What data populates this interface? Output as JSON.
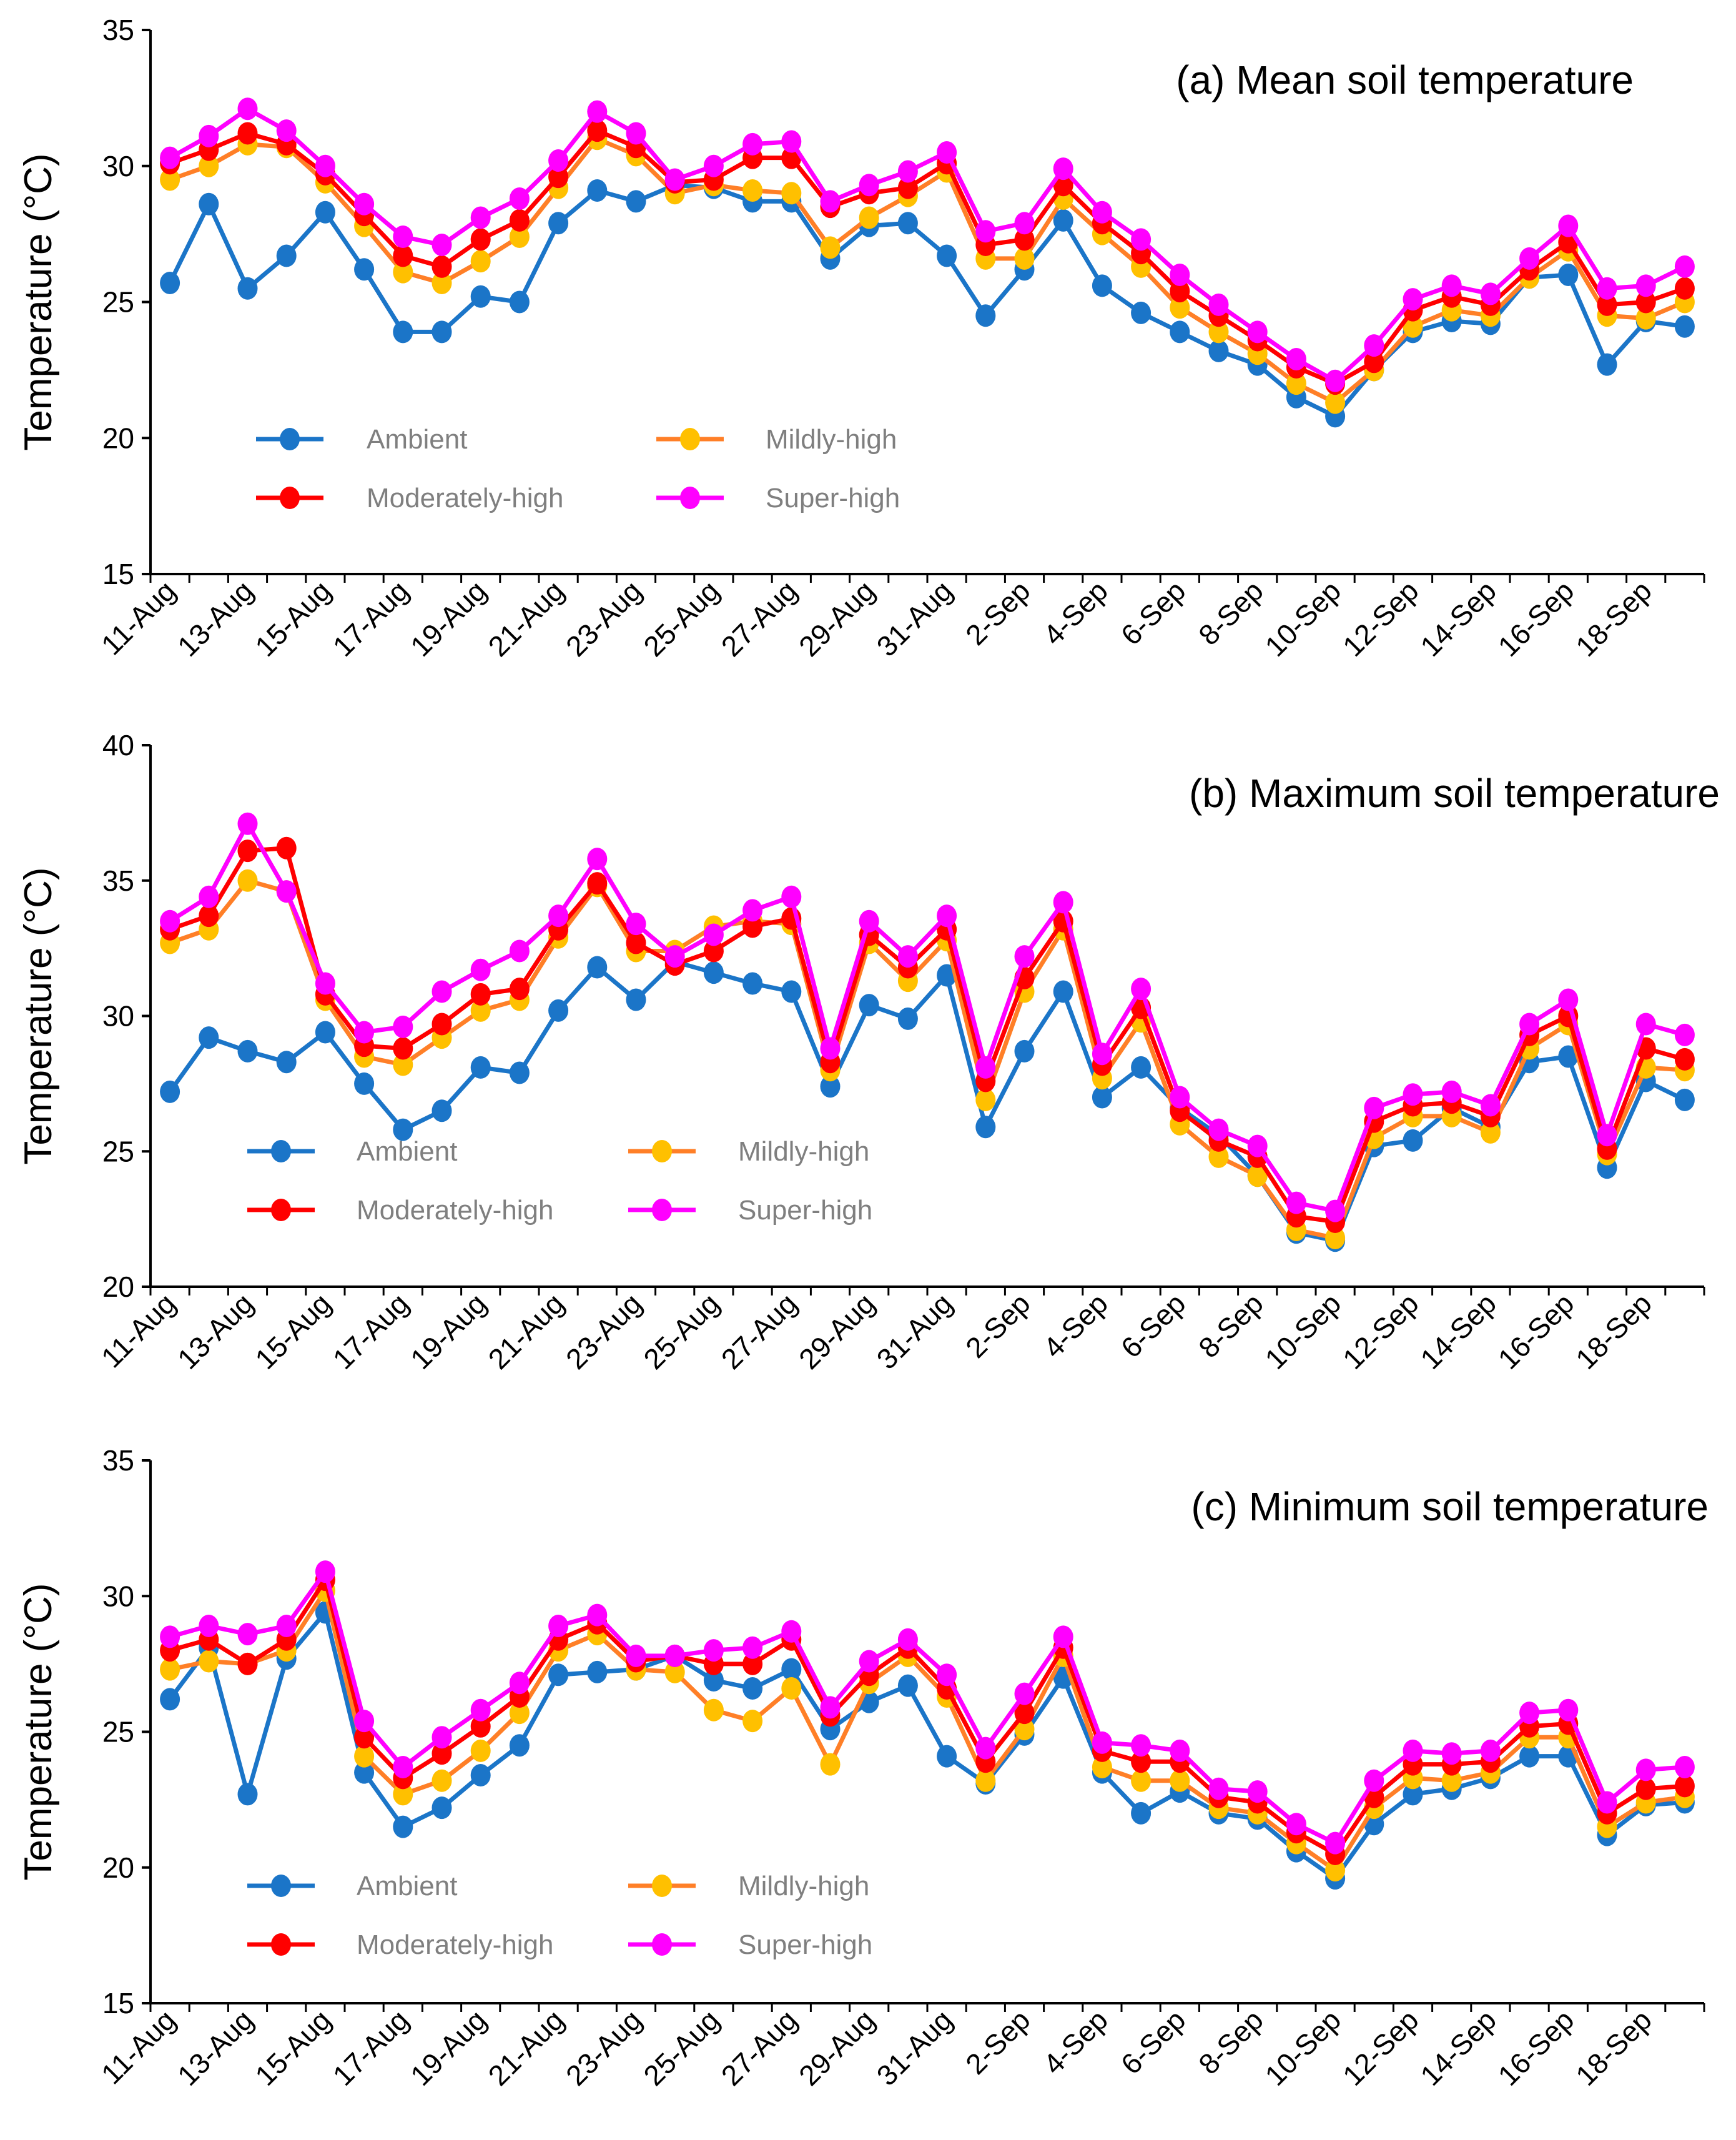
{
  "chart_data": [
    {
      "type": "line",
      "title": "(a) Mean soil temperature",
      "ylabel": "Temperature (°C)",
      "xlabel": "",
      "ylim": [
        15,
        35
      ],
      "yticks": [
        "15",
        "20",
        "25",
        "30",
        "35"
      ],
      "grid": false,
      "legend_position": "lower-left",
      "series": [
        {
          "name": "Ambient",
          "values": [
            25.7,
            28.6,
            25.5,
            26.7,
            28.3,
            26.2,
            23.9,
            23.9,
            25.2,
            25.0,
            27.9,
            29.1,
            28.7,
            29.3,
            29.2,
            28.7,
            28.7,
            26.6,
            27.8,
            27.9,
            26.7,
            24.5,
            26.2,
            28.0,
            25.6,
            24.6,
            23.9,
            23.2,
            22.7,
            21.5,
            20.8,
            22.5,
            23.9,
            24.3,
            24.2,
            25.9,
            26.0,
            22.7,
            24.3,
            24.1
          ]
        },
        {
          "name": "Mildly-high",
          "values": [
            29.5,
            30.0,
            30.8,
            30.7,
            29.4,
            27.8,
            26.1,
            25.7,
            26.5,
            27.4,
            29.2,
            31.0,
            30.4,
            29.0,
            29.3,
            29.1,
            29.0,
            27.0,
            28.1,
            28.9,
            29.8,
            26.6,
            26.6,
            28.8,
            27.5,
            26.3,
            24.8,
            23.9,
            23.1,
            22.0,
            21.3,
            22.5,
            24.1,
            24.7,
            24.5,
            25.9,
            26.9,
            24.5,
            24.4,
            25.0
          ]
        },
        {
          "name": "Moderately-high",
          "values": [
            30.1,
            30.6,
            31.2,
            30.8,
            29.7,
            28.2,
            26.7,
            26.3,
            27.3,
            28.0,
            29.6,
            31.3,
            30.7,
            29.4,
            29.5,
            30.3,
            30.3,
            28.5,
            29.0,
            29.2,
            30.1,
            27.1,
            27.3,
            29.3,
            27.9,
            26.8,
            25.4,
            24.5,
            23.6,
            22.6,
            22.0,
            22.8,
            24.7,
            25.2,
            24.9,
            26.2,
            27.2,
            24.9,
            25.0,
            25.5
          ]
        },
        {
          "name": "Super-high",
          "values": [
            30.3,
            31.1,
            32.1,
            31.3,
            30.0,
            28.6,
            27.4,
            27.1,
            28.1,
            28.8,
            30.2,
            32.0,
            31.2,
            29.5,
            30.0,
            30.8,
            30.9,
            28.7,
            29.3,
            29.8,
            30.5,
            27.6,
            27.9,
            29.9,
            28.3,
            27.3,
            26.0,
            24.9,
            23.9,
            22.9,
            22.1,
            23.4,
            25.1,
            25.6,
            25.3,
            26.6,
            27.8,
            25.5,
            25.6,
            26.3
          ]
        }
      ]
    },
    {
      "type": "line",
      "title": "(b) Maximum soil temperature",
      "ylabel": "Temperature (°C)",
      "xlabel": "",
      "ylim": [
        20,
        40
      ],
      "yticks": [
        "20",
        "25",
        "30",
        "35",
        "40"
      ],
      "grid": false,
      "legend_position": "lower-left",
      "series": [
        {
          "name": "Ambient",
          "values": [
            27.2,
            29.2,
            28.7,
            28.3,
            29.4,
            27.5,
            25.8,
            26.5,
            28.1,
            27.9,
            30.2,
            31.8,
            30.6,
            32.0,
            31.6,
            31.2,
            30.9,
            27.4,
            30.4,
            29.9,
            31.5,
            25.9,
            28.7,
            30.9,
            27.0,
            28.1,
            26.6,
            25.6,
            24.1,
            22.0,
            21.7,
            25.2,
            25.4,
            26.6,
            25.9,
            28.3,
            28.5,
            24.4,
            27.6,
            26.9
          ]
        },
        {
          "name": "Mildly-high",
          "values": [
            32.7,
            33.2,
            35.0,
            34.6,
            30.6,
            28.5,
            28.2,
            29.2,
            30.2,
            30.6,
            32.9,
            34.8,
            32.4,
            32.4,
            33.3,
            33.5,
            33.4,
            28.0,
            32.7,
            31.3,
            32.8,
            26.9,
            30.9,
            33.2,
            27.7,
            29.8,
            26.0,
            24.8,
            24.1,
            22.1,
            21.8,
            25.5,
            26.3,
            26.3,
            25.7,
            28.8,
            29.7,
            24.9,
            28.1,
            28.0
          ]
        },
        {
          "name": "Moderately-high",
          "values": [
            33.2,
            33.7,
            36.1,
            36.2,
            30.8,
            28.9,
            28.8,
            29.7,
            30.8,
            31.0,
            33.2,
            34.9,
            32.7,
            31.9,
            32.4,
            33.3,
            33.6,
            28.3,
            33.0,
            31.8,
            33.2,
            27.6,
            31.4,
            33.5,
            28.2,
            30.3,
            26.5,
            25.4,
            24.8,
            22.6,
            22.4,
            26.1,
            26.7,
            26.8,
            26.3,
            29.3,
            30.0,
            25.1,
            28.8,
            28.4
          ]
        },
        {
          "name": "Super-high",
          "values": [
            33.5,
            34.4,
            37.1,
            34.6,
            31.2,
            29.4,
            29.6,
            30.9,
            31.7,
            32.4,
            33.7,
            35.8,
            33.4,
            32.2,
            33.0,
            33.9,
            34.4,
            28.8,
            33.5,
            32.2,
            33.7,
            28.1,
            32.2,
            34.2,
            28.6,
            31.0,
            27.0,
            25.8,
            25.2,
            23.1,
            22.8,
            26.6,
            27.1,
            27.2,
            26.7,
            29.7,
            30.6,
            25.6,
            29.7,
            29.3
          ]
        }
      ]
    },
    {
      "type": "line",
      "title": "(c) Minimum soil temperature",
      "ylabel": "Temperature (°C)",
      "xlabel": "",
      "ylim": [
        15,
        35
      ],
      "yticks": [
        "15",
        "20",
        "25",
        "30",
        "35"
      ],
      "grid": false,
      "legend_position": "lower-left",
      "series": [
        {
          "name": "Ambient",
          "values": [
            26.2,
            28.1,
            22.7,
            27.7,
            29.4,
            23.5,
            21.5,
            22.2,
            23.4,
            24.5,
            27.1,
            27.2,
            27.3,
            27.8,
            26.9,
            26.6,
            27.3,
            25.1,
            26.1,
            26.7,
            24.1,
            23.1,
            24.9,
            27.0,
            23.5,
            22.0,
            22.8,
            22.0,
            21.8,
            20.6,
            19.6,
            21.6,
            22.7,
            22.9,
            23.3,
            24.1,
            24.1,
            21.2,
            22.3,
            22.4
          ]
        },
        {
          "name": "Mildly-high",
          "values": [
            27.3,
            27.6,
            27.5,
            28.0,
            30.2,
            24.1,
            22.7,
            23.2,
            24.3,
            25.7,
            28.0,
            28.6,
            27.3,
            27.2,
            25.8,
            25.4,
            26.6,
            23.8,
            26.8,
            27.8,
            26.3,
            23.2,
            25.1,
            27.8,
            23.7,
            23.2,
            23.2,
            22.2,
            22.0,
            20.9,
            19.9,
            22.2,
            23.3,
            23.2,
            23.5,
            24.8,
            24.8,
            21.5,
            22.4,
            22.6
          ]
        },
        {
          "name": "Moderately-high",
          "values": [
            28.0,
            28.4,
            27.5,
            28.4,
            30.6,
            24.8,
            23.3,
            24.2,
            25.2,
            26.3,
            28.4,
            29.0,
            27.6,
            27.8,
            27.5,
            27.5,
            28.4,
            25.6,
            27.1,
            28.1,
            26.6,
            23.9,
            25.7,
            28.1,
            24.3,
            23.9,
            23.9,
            22.6,
            22.4,
            21.3,
            20.5,
            22.6,
            23.8,
            23.8,
            23.9,
            25.2,
            25.3,
            22.0,
            22.9,
            23.0
          ]
        },
        {
          "name": "Super-high",
          "values": [
            28.5,
            28.9,
            28.6,
            28.9,
            30.9,
            25.4,
            23.7,
            24.8,
            25.8,
            26.8,
            28.9,
            29.3,
            27.8,
            27.8,
            28.0,
            28.1,
            28.7,
            25.9,
            27.6,
            28.4,
            27.1,
            24.4,
            26.4,
            28.5,
            24.6,
            24.5,
            24.3,
            22.9,
            22.8,
            21.6,
            20.9,
            23.2,
            24.3,
            24.2,
            24.3,
            25.7,
            25.8,
            22.4,
            23.6,
            23.7
          ]
        }
      ]
    }
  ],
  "x_tick_labels": [
    "11-Aug",
    "13-Aug",
    "15-Aug",
    "17-Aug",
    "19-Aug",
    "21-Aug",
    "23-Aug",
    "25-Aug",
    "27-Aug",
    "29-Aug",
    "31-Aug",
    "2-Sep",
    "4-Sep",
    "6-Sep",
    "8-Sep",
    "10-Sep",
    "12-Sep",
    "14-Sep",
    "16-Sep",
    "18-Sep"
  ],
  "n_points": 40,
  "colors": {
    "Ambient": {
      "line": "#1b75c8",
      "marker": "#1b75c8"
    },
    "Mildly-high": {
      "line": "#ff7f27",
      "marker": "#ffc000"
    },
    "Moderately-high": {
      "line": "#ff0000",
      "marker": "#ff0000"
    },
    "Super-high": {
      "line": "#ff00ff",
      "marker": "#ff00ff"
    }
  }
}
